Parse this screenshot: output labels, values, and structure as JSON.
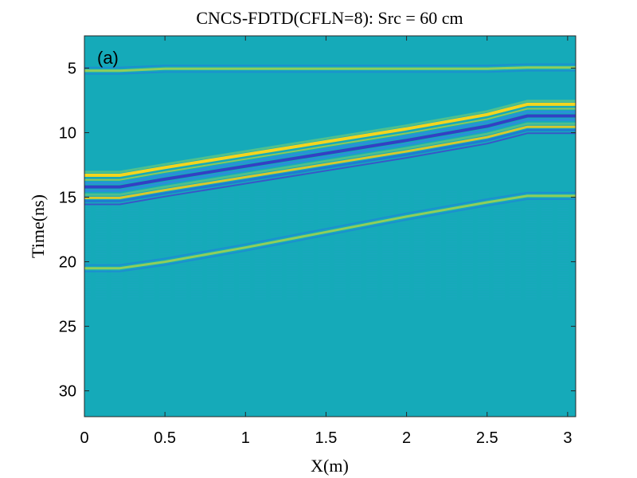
{
  "chart_data": {
    "type": "heatmap",
    "title": "CNCS-FDTD(CFLN=8): Src = 60 cm",
    "panel_label": "(a)",
    "xlabel": "X(m)",
    "ylabel": "Time(ns)",
    "xlim": [
      0,
      3.05
    ],
    "ylim": [
      2.5,
      32.0
    ],
    "y_reversed": true,
    "grid": false,
    "colormap": "parula",
    "background_value_color": "#15aab9",
    "xticks": [
      0,
      0.5,
      1,
      1.5,
      2,
      2.5,
      3
    ],
    "xtick_labels": [
      "0",
      "0.5",
      "1",
      "1.5",
      "2",
      "2.5",
      "3"
    ],
    "yticks": [
      5,
      10,
      15,
      20,
      25,
      30
    ],
    "ytick_labels": [
      "5",
      "10",
      "15",
      "20",
      "25",
      "30"
    ],
    "reflections": [
      {
        "x": [
          0,
          0.22,
          0.5,
          1.0,
          1.5,
          2.0,
          2.5,
          2.75,
          3.05
        ],
        "t": [
          5.1,
          5.1,
          4.95,
          4.95,
          4.95,
          4.95,
          4.95,
          4.85,
          4.85
        ],
        "strength": "weak"
      },
      {
        "x": [
          0,
          0.22,
          0.5,
          1.0,
          1.5,
          2.0,
          2.5,
          2.75,
          3.05
        ],
        "t": [
          13.3,
          13.3,
          12.7,
          11.7,
          10.7,
          9.7,
          8.6,
          7.8,
          7.8
        ],
        "strength": "strong"
      },
      {
        "x": [
          0,
          0.22,
          0.5,
          1.0,
          1.5,
          2.0,
          2.5,
          2.75,
          3.05
        ],
        "t": [
          20.4,
          20.4,
          19.9,
          18.8,
          17.6,
          16.4,
          15.3,
          14.8,
          14.8
        ],
        "strength": "weak"
      }
    ]
  }
}
